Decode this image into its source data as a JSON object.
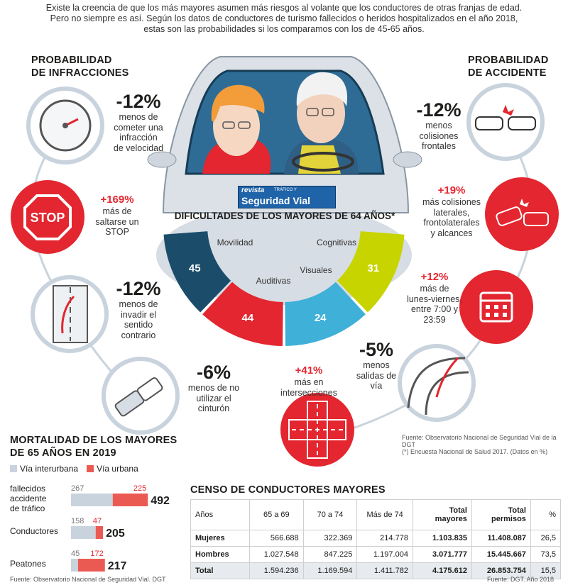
{
  "intro": [
    "Existe la creencia  de que los más mayores asumen más riesgos al volante que los conductores de otras franjas de edad.",
    "Pero no siempre es así. Según los datos de conductores de turismo fallecidos o heridos hospitalizados en el año 2018,",
    "estas son las probabilidades si los comparamos con los de 45-65 años."
  ],
  "left_title": [
    "PROBABILIDAD",
    "DE INFRACCIONES"
  ],
  "right_title": [
    "PROBABILIDAD",
    "DE ACCIDENTE"
  ],
  "infracciones": [
    {
      "icon": "speedometer-icon",
      "value": "-12%",
      "lines": [
        "menos de",
        "cometer una",
        "infracción",
        "de velocidad"
      ]
    },
    {
      "icon": "stop-sign-icon",
      "value": "+169%",
      "lines": [
        "más de",
        "saltarse un",
        "STOP"
      ]
    },
    {
      "icon": "wrong-way-icon",
      "value": "-12%",
      "lines": [
        "menos de",
        "invadir el",
        "sentido",
        "contrario"
      ]
    },
    {
      "icon": "seatbelt-icon",
      "value": "-6%",
      "lines": [
        "menos de no",
        "utilizar el",
        "cinturón"
      ]
    }
  ],
  "accidentes": [
    {
      "icon": "frontal-collision-icon",
      "value": "-12%",
      "lines": [
        "menos",
        "colisiones",
        "frontales"
      ]
    },
    {
      "icon": "side-collision-icon",
      "value": "+19%",
      "lines": [
        "más colisiones",
        "laterales,",
        "frontolaterales",
        "y alcances"
      ]
    },
    {
      "icon": "calendar-icon",
      "value": "+12%",
      "lines": [
        "más de",
        "lunes-viernes,",
        "entre 7:00 y",
        "23:59"
      ]
    },
    {
      "icon": "road-exit-icon",
      "value": "-5%",
      "lines": [
        "menos",
        "salidas de",
        "vía"
      ]
    },
    {
      "icon": "intersection-icon",
      "value": "+41%",
      "lines": [
        "más en",
        "intersecciones"
      ]
    }
  ],
  "logo": {
    "top": "revista",
    "mid": "TRÁFICO Y",
    "bottom": "Seguridad Vial"
  },
  "gauge": {
    "title": "DIFICULTADES DE LOS MAYORES DE 64 AÑOS*",
    "segments": [
      {
        "label": "Movilidad",
        "value": "45",
        "color": "#1b4d6b"
      },
      {
        "label": "Auditivas",
        "value": "44",
        "color": "#e3262f"
      },
      {
        "label": "Visuales",
        "value": "24",
        "color": "#3fb0d8"
      },
      {
        "label": "Cognitivas",
        "value": "31",
        "color": "#c8d400"
      }
    ]
  },
  "sources_right": [
    "Fuente: Observatorio Nacional de Seguridad Vial de la DGT",
    "(*) Encuesta Nacional de Salud 2017. (Datos en %)"
  ],
  "mortalidad": {
    "title": [
      "MORTALIDAD DE LOS MAYORES",
      "DE 65 AÑOS EN 2019"
    ],
    "legend": [
      {
        "label": "Vía interurbana",
        "color": "#c9d3dd"
      },
      {
        "label": "Vía urbana",
        "color": "#eb5a52"
      }
    ],
    "rows": [
      {
        "label": [
          "fallecidos",
          "accidente",
          "de tráfico"
        ],
        "interurbana": "267",
        "urbana": "225",
        "total": "492"
      },
      {
        "label": [
          "Conductores"
        ],
        "interurbana": "158",
        "urbana": "47",
        "total": "205"
      },
      {
        "label": [
          "Peatones"
        ],
        "interurbana": "45",
        "urbana": "172",
        "total": "217"
      }
    ],
    "source": "Fuente: Observatorio Nacional de Seguridad Vial. DGT"
  },
  "chart_data": {
    "type": "bar",
    "title": "MORTALIDAD DE LOS MAYORES DE 65 AÑOS EN 2019",
    "categories": [
      "fallecidos accidente de tráfico",
      "Conductores",
      "Peatones"
    ],
    "series": [
      {
        "name": "Vía interurbana",
        "values": [
          267,
          158,
          45
        ]
      },
      {
        "name": "Vía urbana",
        "values": [
          225,
          47,
          172
        ]
      }
    ],
    "totals": [
      492,
      205,
      217
    ],
    "stacked": true,
    "orientation": "horizontal",
    "legend": "top-left",
    "grid": false
  },
  "censo": {
    "title": "CENSO DE CONDUCTORES MAYORES",
    "headers": [
      "Años",
      "65 a 69",
      "70 a 74",
      "Más de 74",
      "Total mayores",
      "Total permisos",
      "%"
    ],
    "rows": [
      [
        "Mujeres",
        "566.688",
        "322.369",
        "214.778",
        "1.103.835",
        "11.408.087",
        "26,5"
      ],
      [
        "Hombres",
        "1.027.548",
        "847.225",
        "1.197.004",
        "3.071.777",
        "15.445.667",
        "73,5"
      ],
      [
        "Total",
        "1.594.236",
        "1.169.594",
        "1.411.782",
        "4.175.612",
        "26.853.754",
        "15,5"
      ]
    ],
    "source": "Fuente: DGT. Año 2018"
  }
}
